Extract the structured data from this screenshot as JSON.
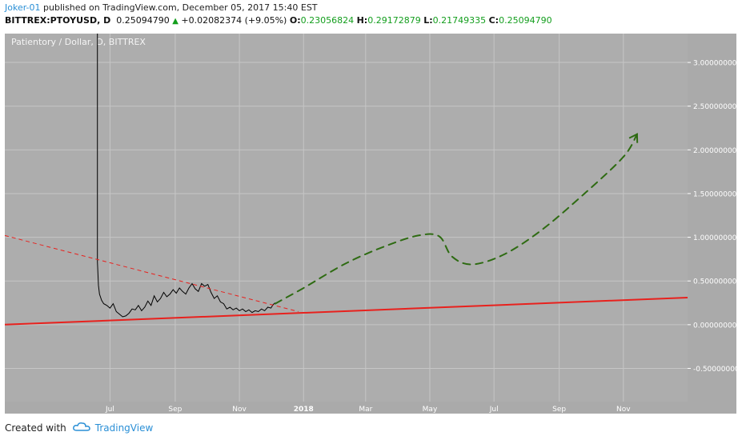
{
  "header": {
    "author": "Joker-01",
    "published_text": "published on TradingView.com, December 05, 2017 15:40 EST",
    "symbol": "BITTREX:PTOYUSD, D",
    "last": "0.25094790",
    "change": "+0.02082374 (+9.05%)",
    "o_label": "O:",
    "o_value": "0.23056824",
    "h_label": "H:",
    "h_value": "0.29172879",
    "l_label": "L:",
    "l_value": "0.21749335",
    "c_label": "C:",
    "c_value": "0.25094790"
  },
  "footer": {
    "created_with": "Created with",
    "brand": "TradingView"
  },
  "colors": {
    "plot_bg": "#adadad",
    "axis_bg": "#aaaaaa",
    "grid": "#c6c6c6",
    "price_line": "#000000",
    "support_line": "#e8211d",
    "resistance_line": "#e8211d",
    "projection": "#2e6b12",
    "author": "#2a8fd6",
    "positive": "#139e1d"
  },
  "chart_data": {
    "type": "line",
    "title": "Patientory / Dollar, D, BITTREX",
    "x_ticks": [
      "Jul",
      "Sep",
      "Nov",
      "2018",
      "Mar",
      "May",
      "Jul",
      "Sep",
      "Nov"
    ],
    "x_tick_dates": [
      "2017-07-01",
      "2017-09-01",
      "2017-11-01",
      "2018-01-01",
      "2018-03-01",
      "2018-05-01",
      "2018-07-01",
      "2018-09-01",
      "2018-11-01"
    ],
    "y_ticks": [
      "3.00000000",
      "2.50000000",
      "2.00000000",
      "1.50000000",
      "1.00000000",
      "0.50000000",
      "0.00000000",
      "-0.50000000"
    ],
    "y_tick_values": [
      3.0,
      2.5,
      2.0,
      1.5,
      1.0,
      0.5,
      0.0,
      -0.5
    ],
    "xlim": [
      "2017-03-23",
      "2019-01-01"
    ],
    "ylim": [
      -0.88,
      3.33
    ],
    "grid": true,
    "series": [
      {
        "kind": "price",
        "x": [
          "2017-06-19",
          "2017-06-19",
          "2017-06-20",
          "2017-06-21",
          "2017-06-23",
          "2017-06-25",
          "2017-06-28",
          "2017-07-01",
          "2017-07-04",
          "2017-07-07",
          "2017-07-10",
          "2017-07-13",
          "2017-07-16",
          "2017-07-19",
          "2017-07-22",
          "2017-07-25",
          "2017-07-28",
          "2017-07-31",
          "2017-08-03",
          "2017-08-06",
          "2017-08-09",
          "2017-08-12",
          "2017-08-15",
          "2017-08-18",
          "2017-08-21",
          "2017-08-24",
          "2017-08-27",
          "2017-08-30",
          "2017-09-02",
          "2017-09-05",
          "2017-09-08",
          "2017-09-11",
          "2017-09-14",
          "2017-09-17",
          "2017-09-20",
          "2017-09-23",
          "2017-09-26",
          "2017-09-29",
          "2017-10-02",
          "2017-10-05",
          "2017-10-08",
          "2017-10-11",
          "2017-10-14",
          "2017-10-17",
          "2017-10-20",
          "2017-10-23",
          "2017-10-26",
          "2017-10-29",
          "2017-11-01",
          "2017-11-04",
          "2017-11-07",
          "2017-11-10",
          "2017-11-13",
          "2017-11-16",
          "2017-11-19",
          "2017-11-22",
          "2017-11-25",
          "2017-11-28",
          "2017-12-01",
          "2017-12-03",
          "2017-12-05"
        ],
        "y": [
          3.33,
          0.72,
          0.45,
          0.35,
          0.28,
          0.24,
          0.22,
          0.19,
          0.24,
          0.15,
          0.12,
          0.09,
          0.1,
          0.13,
          0.18,
          0.17,
          0.22,
          0.16,
          0.2,
          0.27,
          0.22,
          0.33,
          0.26,
          0.3,
          0.37,
          0.32,
          0.35,
          0.4,
          0.36,
          0.42,
          0.38,
          0.35,
          0.42,
          0.47,
          0.41,
          0.38,
          0.47,
          0.44,
          0.46,
          0.37,
          0.3,
          0.33,
          0.26,
          0.24,
          0.18,
          0.2,
          0.17,
          0.19,
          0.16,
          0.18,
          0.15,
          0.17,
          0.14,
          0.16,
          0.15,
          0.18,
          0.16,
          0.2,
          0.19,
          0.23,
          0.25
        ]
      },
      {
        "kind": "support-trendline",
        "x": [
          "2017-03-23",
          "2019-01-01"
        ],
        "y": [
          0.0,
          0.31
        ]
      },
      {
        "kind": "resistance-trendline-dashed",
        "x": [
          "2017-03-23",
          "2017-12-27"
        ],
        "y": [
          1.02,
          0.15
        ]
      },
      {
        "kind": "projection-dashed",
        "x": [
          "2017-12-05",
          "2018-01-01",
          "2018-02-10",
          "2018-03-20",
          "2018-04-20",
          "2018-05-10",
          "2018-05-22",
          "2018-06-10",
          "2018-07-10",
          "2018-08-15",
          "2018-09-25",
          "2018-11-01",
          "2018-11-14"
        ],
        "y": [
          0.24,
          0.42,
          0.7,
          0.9,
          1.02,
          1.01,
          0.78,
          0.69,
          0.8,
          1.08,
          1.5,
          1.92,
          2.18
        ]
      }
    ]
  }
}
